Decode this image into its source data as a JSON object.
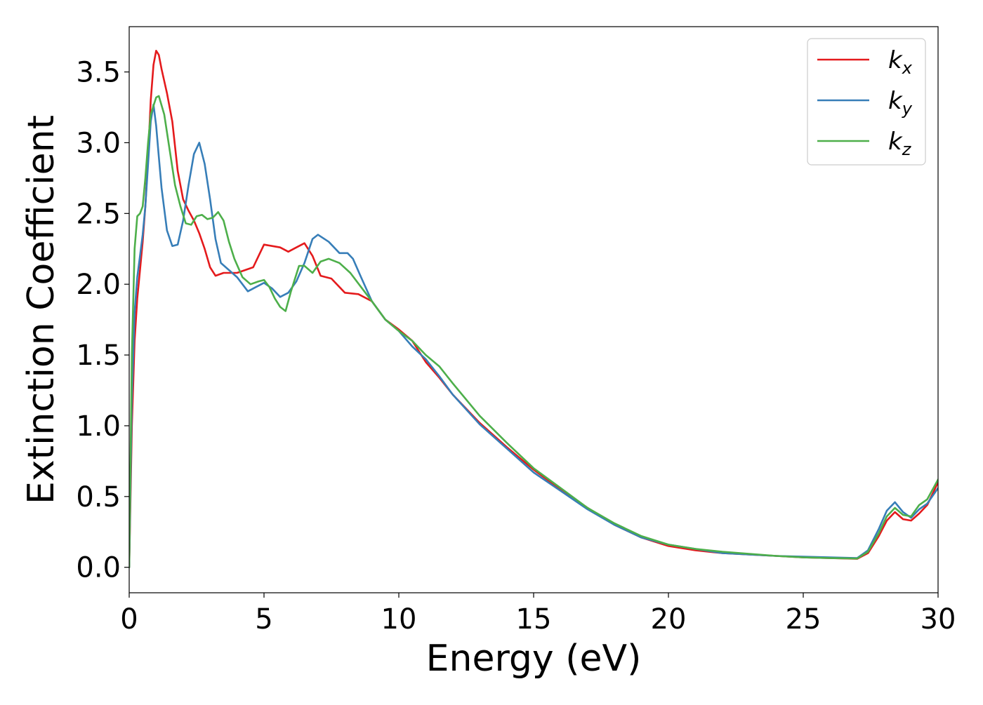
{
  "chart_data": {
    "type": "line",
    "title": "",
    "xlabel": "Energy (eV)",
    "ylabel": "Extinction Coefficient",
    "xlim": [
      0,
      30
    ],
    "ylim": [
      -0.18,
      3.82
    ],
    "xticks": [
      0,
      5,
      10,
      15,
      20,
      25,
      30
    ],
    "xtick_labels": [
      "0",
      "5",
      "10",
      "15",
      "20",
      "25",
      "30"
    ],
    "yticks": [
      0.0,
      0.5,
      1.0,
      1.5,
      2.0,
      2.5,
      3.0,
      3.5
    ],
    "ytick_labels": [
      "0.0",
      "0.5",
      "1.0",
      "1.5",
      "2.0",
      "2.5",
      "3.0",
      "3.5"
    ],
    "grid": false,
    "legend": {
      "position": "top-right"
    },
    "series": [
      {
        "name": "k_x",
        "label_main": "k",
        "label_sub": "x",
        "color": "#e41a1c",
        "points": [
          [
            0,
            0
          ],
          [
            0.1,
            1.0
          ],
          [
            0.2,
            1.6
          ],
          [
            0.3,
            1.9
          ],
          [
            0.4,
            2.1
          ],
          [
            0.5,
            2.3
          ],
          [
            0.6,
            2.55
          ],
          [
            0.7,
            2.9
          ],
          [
            0.8,
            3.3
          ],
          [
            0.9,
            3.55
          ],
          [
            1.0,
            3.65
          ],
          [
            1.1,
            3.62
          ],
          [
            1.2,
            3.52
          ],
          [
            1.4,
            3.35
          ],
          [
            1.6,
            3.15
          ],
          [
            1.8,
            2.8
          ],
          [
            2.0,
            2.6
          ],
          [
            2.2,
            2.52
          ],
          [
            2.4,
            2.45
          ],
          [
            2.6,
            2.36
          ],
          [
            2.8,
            2.25
          ],
          [
            3.0,
            2.12
          ],
          [
            3.2,
            2.06
          ],
          [
            3.5,
            2.08
          ],
          [
            4.0,
            2.08
          ],
          [
            4.3,
            2.1
          ],
          [
            4.6,
            2.12
          ],
          [
            4.8,
            2.2
          ],
          [
            5.0,
            2.28
          ],
          [
            5.3,
            2.27
          ],
          [
            5.6,
            2.26
          ],
          [
            5.9,
            2.23
          ],
          [
            6.2,
            2.26
          ],
          [
            6.5,
            2.29
          ],
          [
            6.8,
            2.2
          ],
          [
            7.1,
            2.06
          ],
          [
            7.5,
            2.04
          ],
          [
            8.0,
            1.94
          ],
          [
            8.5,
            1.93
          ],
          [
            9.0,
            1.88
          ],
          [
            9.5,
            1.75
          ],
          [
            10.0,
            1.68
          ],
          [
            10.5,
            1.6
          ],
          [
            11.0,
            1.45
          ],
          [
            11.5,
            1.34
          ],
          [
            12.0,
            1.22
          ],
          [
            13.0,
            1.02
          ],
          [
            14.0,
            0.85
          ],
          [
            15.0,
            0.69
          ],
          [
            16.0,
            0.55
          ],
          [
            17.0,
            0.42
          ],
          [
            18.0,
            0.3
          ],
          [
            19.0,
            0.21
          ],
          [
            20.0,
            0.15
          ],
          [
            21.0,
            0.12
          ],
          [
            22.0,
            0.1
          ],
          [
            23.0,
            0.09
          ],
          [
            24.0,
            0.08
          ],
          [
            25.0,
            0.07
          ],
          [
            26.0,
            0.065
          ],
          [
            27.0,
            0.06
          ],
          [
            27.4,
            0.1
          ],
          [
            27.8,
            0.22
          ],
          [
            28.1,
            0.33
          ],
          [
            28.4,
            0.39
          ],
          [
            28.7,
            0.34
          ],
          [
            29.0,
            0.33
          ],
          [
            29.3,
            0.38
          ],
          [
            29.6,
            0.44
          ],
          [
            30.0,
            0.6
          ]
        ]
      },
      {
        "name": "k_y",
        "label_main": "k",
        "label_sub": "y",
        "color": "#377eb8",
        "points": [
          [
            0,
            0
          ],
          [
            0.1,
            1.2
          ],
          [
            0.2,
            1.8
          ],
          [
            0.3,
            2.05
          ],
          [
            0.4,
            2.2
          ],
          [
            0.5,
            2.35
          ],
          [
            0.6,
            2.55
          ],
          [
            0.7,
            2.85
          ],
          [
            0.8,
            3.15
          ],
          [
            0.9,
            3.27
          ],
          [
            1.0,
            3.12
          ],
          [
            1.1,
            2.9
          ],
          [
            1.2,
            2.68
          ],
          [
            1.4,
            2.38
          ],
          [
            1.6,
            2.27
          ],
          [
            1.8,
            2.28
          ],
          [
            2.0,
            2.45
          ],
          [
            2.2,
            2.7
          ],
          [
            2.4,
            2.92
          ],
          [
            2.6,
            3.0
          ],
          [
            2.8,
            2.85
          ],
          [
            3.0,
            2.6
          ],
          [
            3.2,
            2.32
          ],
          [
            3.4,
            2.15
          ],
          [
            3.7,
            2.1
          ],
          [
            4.0,
            2.05
          ],
          [
            4.4,
            1.95
          ],
          [
            4.7,
            1.98
          ],
          [
            5.0,
            2.01
          ],
          [
            5.3,
            1.97
          ],
          [
            5.6,
            1.91
          ],
          [
            5.9,
            1.94
          ],
          [
            6.2,
            2.02
          ],
          [
            6.5,
            2.15
          ],
          [
            6.8,
            2.32
          ],
          [
            7.0,
            2.35
          ],
          [
            7.4,
            2.3
          ],
          [
            7.8,
            2.22
          ],
          [
            8.1,
            2.22
          ],
          [
            8.3,
            2.18
          ],
          [
            8.6,
            2.05
          ],
          [
            9.0,
            1.88
          ],
          [
            9.5,
            1.75
          ],
          [
            10.0,
            1.67
          ],
          [
            10.5,
            1.56
          ],
          [
            11.0,
            1.47
          ],
          [
            11.5,
            1.35
          ],
          [
            12.0,
            1.22
          ],
          [
            13.0,
            1.01
          ],
          [
            14.0,
            0.84
          ],
          [
            15.0,
            0.67
          ],
          [
            16.0,
            0.54
          ],
          [
            17.0,
            0.41
          ],
          [
            18.0,
            0.3
          ],
          [
            19.0,
            0.21
          ],
          [
            20.0,
            0.16
          ],
          [
            21.0,
            0.13
          ],
          [
            22.0,
            0.1
          ],
          [
            23.0,
            0.09
          ],
          [
            24.0,
            0.08
          ],
          [
            25.0,
            0.075
          ],
          [
            26.0,
            0.07
          ],
          [
            27.0,
            0.065
          ],
          [
            27.4,
            0.12
          ],
          [
            27.8,
            0.27
          ],
          [
            28.1,
            0.4
          ],
          [
            28.4,
            0.46
          ],
          [
            28.7,
            0.39
          ],
          [
            29.0,
            0.35
          ],
          [
            29.3,
            0.41
          ],
          [
            29.6,
            0.45
          ],
          [
            30.0,
            0.56
          ]
        ]
      },
      {
        "name": "k_z",
        "label_main": "k",
        "label_sub": "z",
        "color": "#4daf4a",
        "points": [
          [
            0,
            0
          ],
          [
            0.1,
            1.5
          ],
          [
            0.2,
            2.25
          ],
          [
            0.3,
            2.48
          ],
          [
            0.4,
            2.5
          ],
          [
            0.5,
            2.55
          ],
          [
            0.6,
            2.75
          ],
          [
            0.7,
            3.0
          ],
          [
            0.8,
            3.2
          ],
          [
            1.0,
            3.32
          ],
          [
            1.1,
            3.33
          ],
          [
            1.3,
            3.2
          ],
          [
            1.5,
            2.95
          ],
          [
            1.7,
            2.7
          ],
          [
            1.9,
            2.55
          ],
          [
            2.1,
            2.43
          ],
          [
            2.3,
            2.42
          ],
          [
            2.5,
            2.48
          ],
          [
            2.7,
            2.49
          ],
          [
            2.9,
            2.46
          ],
          [
            3.1,
            2.47
          ],
          [
            3.3,
            2.51
          ],
          [
            3.5,
            2.45
          ],
          [
            3.7,
            2.3
          ],
          [
            3.9,
            2.18
          ],
          [
            4.2,
            2.05
          ],
          [
            4.5,
            2.0
          ],
          [
            4.8,
            2.02
          ],
          [
            5.0,
            2.03
          ],
          [
            5.2,
            1.98
          ],
          [
            5.4,
            1.9
          ],
          [
            5.6,
            1.84
          ],
          [
            5.8,
            1.81
          ],
          [
            6.0,
            1.95
          ],
          [
            6.3,
            2.13
          ],
          [
            6.5,
            2.13
          ],
          [
            6.8,
            2.08
          ],
          [
            7.1,
            2.16
          ],
          [
            7.4,
            2.18
          ],
          [
            7.8,
            2.15
          ],
          [
            8.2,
            2.08
          ],
          [
            8.6,
            1.98
          ],
          [
            9.0,
            1.88
          ],
          [
            9.5,
            1.75
          ],
          [
            10.0,
            1.67
          ],
          [
            10.5,
            1.6
          ],
          [
            11.0,
            1.5
          ],
          [
            11.5,
            1.42
          ],
          [
            12.0,
            1.3
          ],
          [
            13.0,
            1.07
          ],
          [
            14.0,
            0.88
          ],
          [
            15.0,
            0.7
          ],
          [
            16.0,
            0.56
          ],
          [
            17.0,
            0.42
          ],
          [
            18.0,
            0.31
          ],
          [
            19.0,
            0.22
          ],
          [
            20.0,
            0.16
          ],
          [
            21.0,
            0.13
          ],
          [
            22.0,
            0.11
          ],
          [
            23.0,
            0.095
          ],
          [
            24.0,
            0.08
          ],
          [
            25.0,
            0.07
          ],
          [
            26.0,
            0.065
          ],
          [
            27.0,
            0.062
          ],
          [
            27.4,
            0.11
          ],
          [
            27.8,
            0.24
          ],
          [
            28.1,
            0.36
          ],
          [
            28.4,
            0.42
          ],
          [
            28.7,
            0.37
          ],
          [
            29.0,
            0.36
          ],
          [
            29.3,
            0.44
          ],
          [
            29.6,
            0.48
          ],
          [
            30.0,
            0.62
          ]
        ]
      }
    ]
  }
}
